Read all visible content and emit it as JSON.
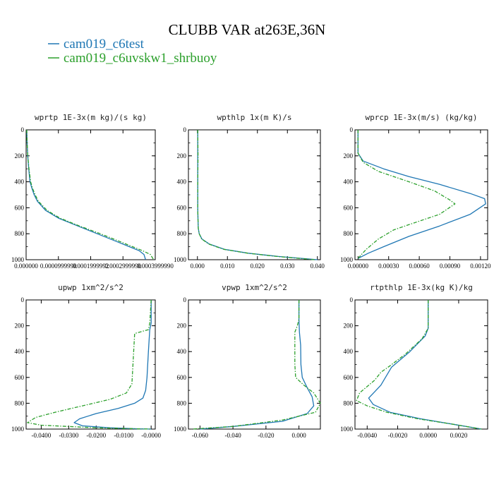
{
  "title": "CLUBB VAR at263E,36N",
  "legend": [
    {
      "name": "cam019_c6test",
      "color": "#1f77b4"
    },
    {
      "name": "cam019_c6uvskw1_shrbuoy",
      "color": "#2ca02c"
    }
  ],
  "chart_data": [
    {
      "type": "line",
      "title": "wprtp  1E-3x(m kg)/(s kg)",
      "xlim": [
        0,
        0.0004
      ],
      "ylim": [
        0,
        1000
      ],
      "y_inverted": true,
      "xticks": [
        0,
        0.0001,
        0.0002,
        0.0003,
        0.0004
      ],
      "xtick_labels": [
        "0.000000",
        "0.0000999990",
        "0.0001999992",
        "0.0002999990",
        "0.0003999990"
      ],
      "yticks": [
        0,
        200,
        400,
        600,
        800,
        1000
      ],
      "series": [
        {
          "name": "cam019_c6test",
          "x": [
            2e-06,
            3e-06,
            5e-06,
            8e-06,
            1.2e-05,
            1.8e-05,
            2.5e-05,
            3.5e-05,
            6e-05,
            0.0001,
            0.00016,
            0.00022,
            0.00028,
            0.00032,
            0.00035,
            0.000365,
            0.00037
          ],
          "y": [
            0,
            100,
            200,
            300,
            400,
            450,
            500,
            550,
            620,
            680,
            740,
            800,
            860,
            900,
            930,
            960,
            1000
          ]
        },
        {
          "name": "cam019_c6uvskw1_shrbuoy",
          "x": [
            2e-06,
            3e-06,
            5e-06,
            9e-06,
            1.4e-05,
            2e-05,
            2.8e-05,
            3.8e-05,
            6.5e-05,
            0.000105,
            0.000165,
            0.00023,
            0.00029,
            0.00033,
            0.00036,
            0.000385,
            0.000395
          ],
          "y": [
            0,
            100,
            200,
            300,
            400,
            450,
            500,
            550,
            620,
            680,
            740,
            800,
            860,
            900,
            930,
            960,
            1000
          ]
        }
      ]
    },
    {
      "type": "line",
      "title": "wpthlp  1x(m K)/s",
      "xlim": [
        -0.003,
        0.041
      ],
      "ylim": [
        0,
        1000
      ],
      "y_inverted": true,
      "xticks": [
        0,
        0.01,
        0.02,
        0.03,
        0.04
      ],
      "xtick_labels": [
        "0.000",
        "0.010",
        "0.020",
        "0.030",
        "0.040"
      ],
      "yticks": [
        0,
        200,
        400,
        600,
        800,
        1000
      ],
      "series": [
        {
          "name": "cam019_c6test",
          "x": [
            0.0001,
            0.0001,
            0.0001,
            0.0001,
            0.0002,
            0.0003,
            0.0006,
            0.0015,
            0.004,
            0.009,
            0.017,
            0.027,
            0.04
          ],
          "y": [
            0,
            200,
            400,
            600,
            700,
            760,
            800,
            840,
            880,
            920,
            950,
            975,
            1000
          ]
        },
        {
          "name": "cam019_c6uvskw1_shrbuoy",
          "x": [
            0.0001,
            0.0002,
            0.0001,
            0.0001,
            0.0002,
            0.0003,
            0.0006,
            0.0014,
            0.0038,
            0.0088,
            0.0168,
            0.0265,
            0.039
          ],
          "y": [
            0,
            200,
            400,
            600,
            700,
            760,
            800,
            840,
            880,
            920,
            950,
            975,
            1000
          ]
        }
      ]
    },
    {
      "type": "line",
      "title": "wprcp  1E-3x(m/s) (kg/kg)",
      "xlim": [
        -3e-05,
        0.00127
      ],
      "ylim": [
        0,
        1000
      ],
      "y_inverted": true,
      "xticks": [
        0,
        0.0003,
        0.0006,
        0.0009,
        0.0012
      ],
      "xtick_labels": [
        "0.00000",
        "0.00030",
        "0.00060",
        "0.00090",
        "0.00120"
      ],
      "yticks": [
        0,
        200,
        400,
        600,
        800,
        1000
      ],
      "series": [
        {
          "name": "cam019_c6test",
          "x": [
            0,
            0,
            5e-05,
            0.00025,
            0.0005,
            0.0008,
            0.0011,
            0.00124,
            0.00125,
            0.0011,
            0.0008,
            0.0005,
            0.00025,
            0.0001,
            0
          ],
          "y": [
            0,
            180,
            240,
            300,
            360,
            420,
            490,
            530,
            570,
            650,
            740,
            820,
            900,
            950,
            990
          ]
        },
        {
          "name": "cam019_c6uvskw1_shrbuoy",
          "x": [
            0,
            0,
            5e-05,
            0.0002,
            0.0005,
            0.00075,
            0.0009,
            0.00095,
            0.0008,
            0.0005,
            0.00035,
            0.0002,
            8e-05,
            0
          ],
          "y": [
            0,
            180,
            250,
            320,
            400,
            470,
            540,
            570,
            650,
            730,
            770,
            840,
            920,
            990
          ]
        }
      ]
    },
    {
      "type": "line",
      "title": "upwp  1xm^2/s^2",
      "xlim": [
        -0.0455,
        0.0015
      ],
      "ylim": [
        0,
        1000
      ],
      "y_inverted": true,
      "xticks": [
        -0.04,
        -0.03,
        -0.02,
        -0.01,
        0
      ],
      "xtick_labels": [
        "-0.0400",
        "-0.0300",
        "-0.0200",
        "-0.0100",
        "-0.0000"
      ],
      "yticks": [
        0,
        200,
        400,
        600,
        800,
        1000
      ],
      "series": [
        {
          "name": "cam019_c6test",
          "x": [
            0,
            0,
            -0.0005,
            -0.001,
            -0.0015,
            -0.002,
            -0.003,
            -0.006,
            -0.012,
            -0.02,
            -0.026,
            -0.028,
            -0.025,
            -0.015,
            -0.005,
            0
          ],
          "y": [
            0,
            180,
            230,
            400,
            600,
            700,
            760,
            800,
            840,
            880,
            920,
            950,
            975,
            990,
            998,
            1000
          ]
        },
        {
          "name": "cam019_c6uvskw1_shrbuoy",
          "x": [
            0,
            -0.0005,
            -0.001,
            -0.006,
            -0.0065,
            -0.007,
            -0.009,
            -0.015,
            -0.025,
            -0.035,
            -0.042,
            -0.045,
            -0.04,
            -0.02,
            -0.005,
            0
          ],
          "y": [
            0,
            180,
            230,
            260,
            450,
            650,
            720,
            770,
            820,
            870,
            910,
            950,
            970,
            990,
            998,
            1000
          ]
        }
      ]
    },
    {
      "type": "line",
      "title": "vpwp  1xm^2/s^2",
      "xlim": [
        -0.067,
        0.013
      ],
      "ylim": [
        0,
        1000
      ],
      "y_inverted": true,
      "xticks": [
        -0.06,
        -0.04,
        -0.02,
        0
      ],
      "xtick_labels": [
        "-0.060",
        "-0.040",
        "-0.020",
        "0.000"
      ],
      "yticks": [
        0,
        200,
        400,
        600,
        800,
        1000
      ],
      "series": [
        {
          "name": "cam019_c6test",
          "x": [
            0,
            0,
            0.0003,
            0.001,
            0.0012,
            0.002,
            0.005,
            0.008,
            0.009,
            0.005,
            -0.01,
            -0.04,
            -0.06
          ],
          "y": [
            0,
            150,
            250,
            350,
            500,
            600,
            680,
            750,
            820,
            880,
            940,
            980,
            1000
          ]
        },
        {
          "name": "cam019_c6uvskw1_shrbuoy",
          "x": [
            0,
            0,
            -0.001,
            -0.0025,
            -0.0025,
            -0.002,
            0.003,
            0.009,
            0.013,
            0.01,
            -0.01,
            -0.04,
            -0.065
          ],
          "y": [
            0,
            150,
            200,
            250,
            500,
            600,
            660,
            720,
            800,
            870,
            930,
            980,
            1000
          ]
        }
      ]
    },
    {
      "type": "line",
      "title": "rtpthlp  1E-3x(kg K)/kg",
      "xlim": [
        -0.0048,
        0.0039
      ],
      "ylim": [
        0,
        1000
      ],
      "y_inverted": true,
      "xticks": [
        -0.004,
        -0.002,
        0,
        0.002
      ],
      "xtick_labels": [
        "-0.0040",
        "-0.0020",
        "0.0000",
        "0.0020"
      ],
      "yticks": [
        0,
        200,
        400,
        600,
        800,
        1000
      ],
      "series": [
        {
          "name": "cam019_c6test",
          "x": [
            0,
            0,
            -0.0002,
            -0.0012,
            -0.0024,
            -0.0028,
            -0.0031,
            -0.0035,
            -0.0039,
            -0.0036,
            -0.0025,
            -0.0005,
            0.0015,
            0.0035
          ],
          "y": [
            0,
            220,
            280,
            400,
            520,
            600,
            660,
            710,
            760,
            810,
            870,
            920,
            960,
            1000
          ]
        },
        {
          "name": "cam019_c6uvskw1_shrbuoy",
          "x": [
            0,
            0,
            -0.0004,
            -0.0015,
            -0.0025,
            -0.0031,
            -0.0035,
            -0.0045,
            -0.0047,
            -0.004,
            -0.0027,
            -0.0007,
            0.0015,
            0.0035
          ],
          "y": [
            0,
            220,
            300,
            420,
            510,
            560,
            620,
            720,
            780,
            820,
            870,
            920,
            960,
            1000
          ]
        }
      ]
    }
  ]
}
